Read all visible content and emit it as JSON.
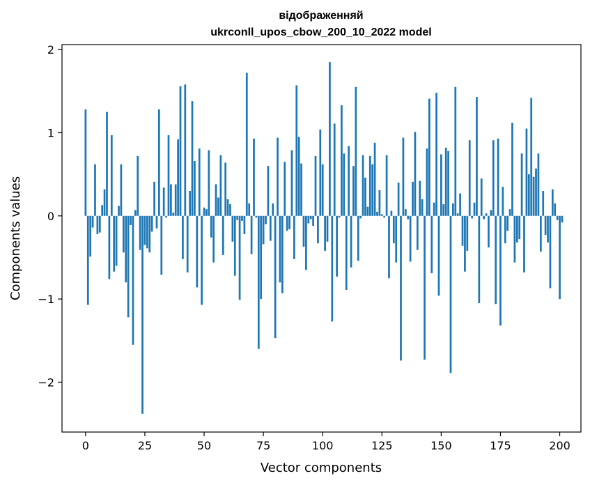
{
  "chart_data": {
    "type": "bar",
    "title_lines": [
      "відображенняй",
      "ukrconll_upos_cbow_200_10_2022 model"
    ],
    "xlabel": "Vector components",
    "ylabel": "Components values",
    "xlim": [
      -9.95,
      208.95
    ],
    "ylim": [
      -2.6,
      2.06
    ],
    "xticks": [
      0,
      25,
      50,
      75,
      100,
      125,
      150,
      175,
      200
    ],
    "yticks": [
      -2,
      -1,
      0,
      1,
      2
    ],
    "ytick_labels": [
      "−2",
      "−1",
      "0",
      "1",
      "2"
    ],
    "bar_color": "#1f77b4",
    "grid": false,
    "values": [
      1.28,
      -1.07,
      -0.49,
      -0.14,
      0.62,
      -0.22,
      -0.2,
      0.13,
      0.32,
      1.25,
      -0.76,
      0.97,
      -0.67,
      -0.6,
      0.12,
      0.62,
      -0.44,
      -0.8,
      -1.22,
      -0.11,
      -1.55,
      0.07,
      0.72,
      -0.41,
      -2.38,
      -0.35,
      -0.39,
      -0.44,
      -0.19,
      0.41,
      -0.15,
      1.28,
      -0.71,
      0.34,
      -0.02,
      0.97,
      0.38,
      0.04,
      0.38,
      0.92,
      1.56,
      -0.52,
      1.58,
      -0.68,
      0.3,
      1.38,
      0.66,
      -0.86,
      0.81,
      -1.07,
      0.1,
      0.08,
      0.79,
      -0.26,
      -0.56,
      0.38,
      0.22,
      0.73,
      -0.47,
      0.64,
      0.2,
      0.14,
      -0.31,
      -0.72,
      -0.05,
      -1.01,
      -0.06,
      -0.22,
      1.72,
      0.15,
      -0.46,
      0.93,
      -0.02,
      -1.6,
      -1.0,
      -0.34,
      -0.1,
      0.6,
      -0.3,
      0.15,
      -1.47,
      0.94,
      -0.8,
      -0.93,
      0.65,
      -0.18,
      -0.16,
      0.79,
      -0.52,
      1.57,
      0.95,
      0.63,
      -0.37,
      -0.65,
      -0.09,
      -0.04,
      -0.12,
      0.72,
      -0.33,
      1.04,
      0.62,
      -0.42,
      -0.31,
      1.85,
      -1.27,
      1.11,
      -0.73,
      -0.02,
      1.33,
      0.75,
      -0.89,
      0.84,
      -0.62,
      0.6,
      1.55,
      -0.54,
      -0.03,
      0.73,
      0.46,
      0.11,
      0.72,
      0.62,
      0.88,
      0.05,
      0.31,
      0.02,
      -0.02,
      0.73,
      -0.75,
      0.06,
      -0.33,
      -0.56,
      0.4,
      -1.74,
      0.94,
      0.08,
      -0.04,
      -0.55,
      0.41,
      1.01,
      -0.41,
      0.42,
      0.2,
      -1.73,
      0.81,
      1.41,
      -0.69,
      0.16,
      1.48,
      -0.96,
      0.74,
      0.14,
      0.82,
      0.78,
      -1.89,
      0.15,
      1.55,
      0.03,
      0.27,
      -0.36,
      -0.67,
      -0.42,
      0.91,
      -0.03,
      0.16,
      1.43,
      -1.05,
      0.45,
      -0.04,
      0.03,
      -0.38,
      0.07,
      0.91,
      -1.06,
      0.93,
      -1.32,
      0.35,
      -0.33,
      -0.18,
      0.08,
      1.12,
      -0.56,
      -0.32,
      -0.28,
      0.75,
      -0.68,
      1.05,
      0.5,
      1.42,
      0.47,
      0.57,
      0.75,
      -0.43,
      0.3,
      -0.23,
      -0.32,
      -0.87,
      0.32,
      0.15,
      -0.05,
      -1.0,
      -0.08
    ]
  }
}
